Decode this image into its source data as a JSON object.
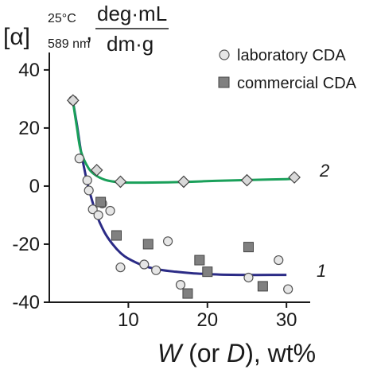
{
  "chart_data": {
    "type": "scatter",
    "title": "",
    "ylabel": {
      "symbol": "[α]",
      "superscript": "25°C",
      "subscript": "589 nm",
      "comma": ",",
      "unit_numerator": "deg·mL",
      "unit_denominator": "dm·g"
    },
    "xlabel": {
      "var1": "W",
      "open": " (or ",
      "var2": "D",
      "close": "), wt%"
    },
    "xlim": [
      0,
      33
    ],
    "ylim": [
      -40,
      46
    ],
    "xticks": [
      10,
      20,
      30
    ],
    "yticks": [
      -40,
      -20,
      0,
      20,
      40
    ],
    "legend_position": "top-right",
    "series": [
      {
        "name": "laboratory CDA",
        "marker": "circle",
        "color": "#e6e6e6",
        "x": [
          3,
          3.8,
          4.8,
          5.0,
          5.5,
          6.2,
          6.7,
          7.7,
          9.0,
          12.0,
          13.5,
          15.0,
          16.6,
          25.2,
          29.0,
          30.2
        ],
        "y": [
          29.5,
          9.5,
          2,
          -1.5,
          -8,
          -10,
          -6,
          -8.5,
          -28,
          -27,
          -29,
          -19,
          -34,
          -31.5,
          -25.5,
          -35.5
        ]
      },
      {
        "name": "commercial CDA",
        "marker": "square",
        "color": "#808080",
        "x": [
          6.5,
          8.5,
          12.5,
          17.5,
          19.0,
          20.0,
          25.2,
          27.0
        ],
        "y": [
          -5.5,
          -17,
          -20,
          -37,
          -25.5,
          -29.5,
          -21,
          -34.5
        ]
      },
      {
        "name": "2",
        "marker": "diamond",
        "color": "#d9d9d9",
        "line_color": "#1aa05a",
        "x": [
          3,
          6.0,
          9.0,
          17.0,
          25.0,
          31.0
        ],
        "y": [
          29.5,
          5.5,
          1.5,
          1.5,
          2.0,
          3.0
        ]
      }
    ],
    "curves": [
      {
        "label": "1",
        "color": "#2b2b86",
        "x": [
          3,
          3.5,
          4,
          4.5,
          5,
          6,
          7,
          8,
          9,
          10,
          12,
          14,
          16,
          18,
          20,
          22,
          25,
          28,
          30
        ],
        "y": [
          29,
          21,
          12,
          5,
          -1,
          -10,
          -16,
          -20,
          -23,
          -25,
          -27.5,
          -28.8,
          -29.5,
          -30,
          -30.3,
          -30.5,
          -30.6,
          -30.6,
          -30.6
        ]
      },
      {
        "label": "2",
        "color": "#1aa05a",
        "x": [
          3,
          3.5,
          4,
          5,
          6,
          7,
          8,
          9,
          10,
          12,
          15,
          18,
          21,
          24,
          27,
          30,
          31
        ],
        "y": [
          29,
          20,
          12,
          6,
          3.5,
          2.2,
          1.6,
          1.3,
          1.2,
          1.2,
          1.3,
          1.5,
          1.8,
          2.0,
          2.2,
          2.4,
          2.5
        ]
      }
    ],
    "curve_labels": [
      "2",
      "1"
    ],
    "legend": [
      "laboratory CDA",
      "commercial CDA"
    ]
  }
}
